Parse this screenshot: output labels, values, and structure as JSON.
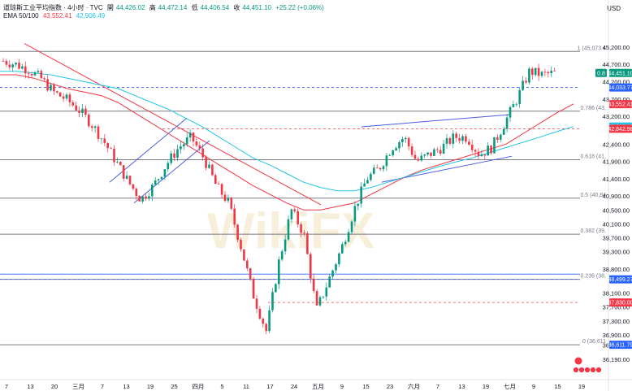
{
  "header": {
    "symbol": "道琼斯工业平均指数 · 4小时 · TVC",
    "open_label": "開",
    "open": "44,426.02",
    "high_label": "高",
    "high": "44,472.14",
    "low_label": "低",
    "low": "44,406.54",
    "close_label": "收",
    "close": "44,451.10",
    "change": "+25.22 (+0.06%)",
    "ema_label": "EMA 50/100",
    "ema50": "43,552.41",
    "ema100": "42,906.49"
  },
  "currency": "USD",
  "watermark": "WikiFX",
  "colors": {
    "up": "#089981",
    "down": "#f23645",
    "ema50": "#f23645",
    "ema100": "#22c5e6",
    "trend": "#4a5ce0",
    "fib": "#787b86"
  },
  "chart_data": {
    "type": "candlestick",
    "ylim": [
      35700,
      45900
    ],
    "y_ticks": [
      45200,
      44700,
      44200,
      43700,
      43200,
      42400,
      41900,
      41400,
      40900,
      40500,
      40100,
      39700,
      39300,
      38800,
      38100,
      37700,
      37300,
      36900,
      36600,
      36190
    ],
    "x_ticks": [
      "7",
      "13",
      "20",
      "三月",
      "7",
      "13",
      "19",
      "25",
      "四月",
      "5",
      "11",
      "17",
      "24",
      "五月",
      "9",
      "15",
      "23",
      "六月",
      "7",
      "13",
      "19",
      "七月",
      "9",
      "15",
      "19"
    ],
    "fib_levels": [
      {
        "label": "1 (45,073.4",
        "value": 45073
      },
      {
        "label": "0.786 (43,",
        "value": 43350
      },
      {
        "label": "0.618 (41,",
        "value": 41950
      },
      {
        "label": "0.5 (40,84",
        "value": 40840
      },
      {
        "label": "0.382 (39,",
        "value": 39800
      },
      {
        "label": "0.236 (38,",
        "value": 38500
      },
      {
        "label": "0 (36,611",
        "value": 36611
      }
    ],
    "price_tags": [
      {
        "label": "44,451.10",
        "value": 44451,
        "color": "#089981",
        "badge": "0.8"
      },
      {
        "label": "44,033.77",
        "value": 44034,
        "color": "#2962ff"
      },
      {
        "label": "43,552.41",
        "value": 43552,
        "color": "#f23645"
      },
      {
        "label": "42,906.49",
        "value": 42906,
        "color": "#22c5e6"
      },
      {
        "label": "42,842.98",
        "value": 42843,
        "color": "#f23645"
      },
      {
        "label": "38,499.27",
        "value": 38499,
        "color": "#2962ff"
      },
      {
        "label": "37,830.00",
        "value": 37830,
        "color": "#f23645"
      },
      {
        "label": "36,611.79",
        "value": 36612,
        "color": "#2962ff"
      }
    ],
    "series": [
      {
        "name": "EMA 50",
        "values": [
          44400,
          44400,
          44300,
          44150,
          44000,
          43900,
          43800,
          43600,
          43300,
          43000,
          42700,
          42400,
          42100,
          41800,
          41500,
          41200,
          40950,
          40700,
          40500,
          40500,
          40600,
          40700,
          40950,
          41200,
          41450,
          41650,
          41800,
          41950,
          42100,
          42250,
          42400,
          42700,
          43000,
          43300,
          43560
        ]
      },
      {
        "name": "EMA 100",
        "values": [
          44500,
          44500,
          44450,
          44400,
          44300,
          44200,
          44100,
          44000,
          43800,
          43600,
          43400,
          43150,
          42900,
          42600,
          42300,
          42000,
          41800,
          41550,
          41300,
          41150,
          41050,
          41050,
          41150,
          41300,
          41450,
          41600,
          41750,
          41880,
          42000,
          42150,
          42300,
          42450,
          42600,
          42760,
          42906
        ]
      }
    ],
    "close_path": [
      44800,
      44700,
      44550,
      44300,
      43900,
      43700,
      43400,
      43000,
      42500,
      41900,
      41300,
      40800,
      41200,
      41800,
      42300,
      42600,
      42000,
      41200,
      40700,
      39400,
      38000,
      37000,
      39000,
      40500,
      39800,
      37600,
      38500,
      39400,
      40500,
      41400,
      41700,
      42300,
      42600,
      41900,
      42100,
      42300,
      42600,
      42600,
      42100,
      42300,
      43000,
      43700,
      44500,
      44400,
      44451
    ]
  }
}
